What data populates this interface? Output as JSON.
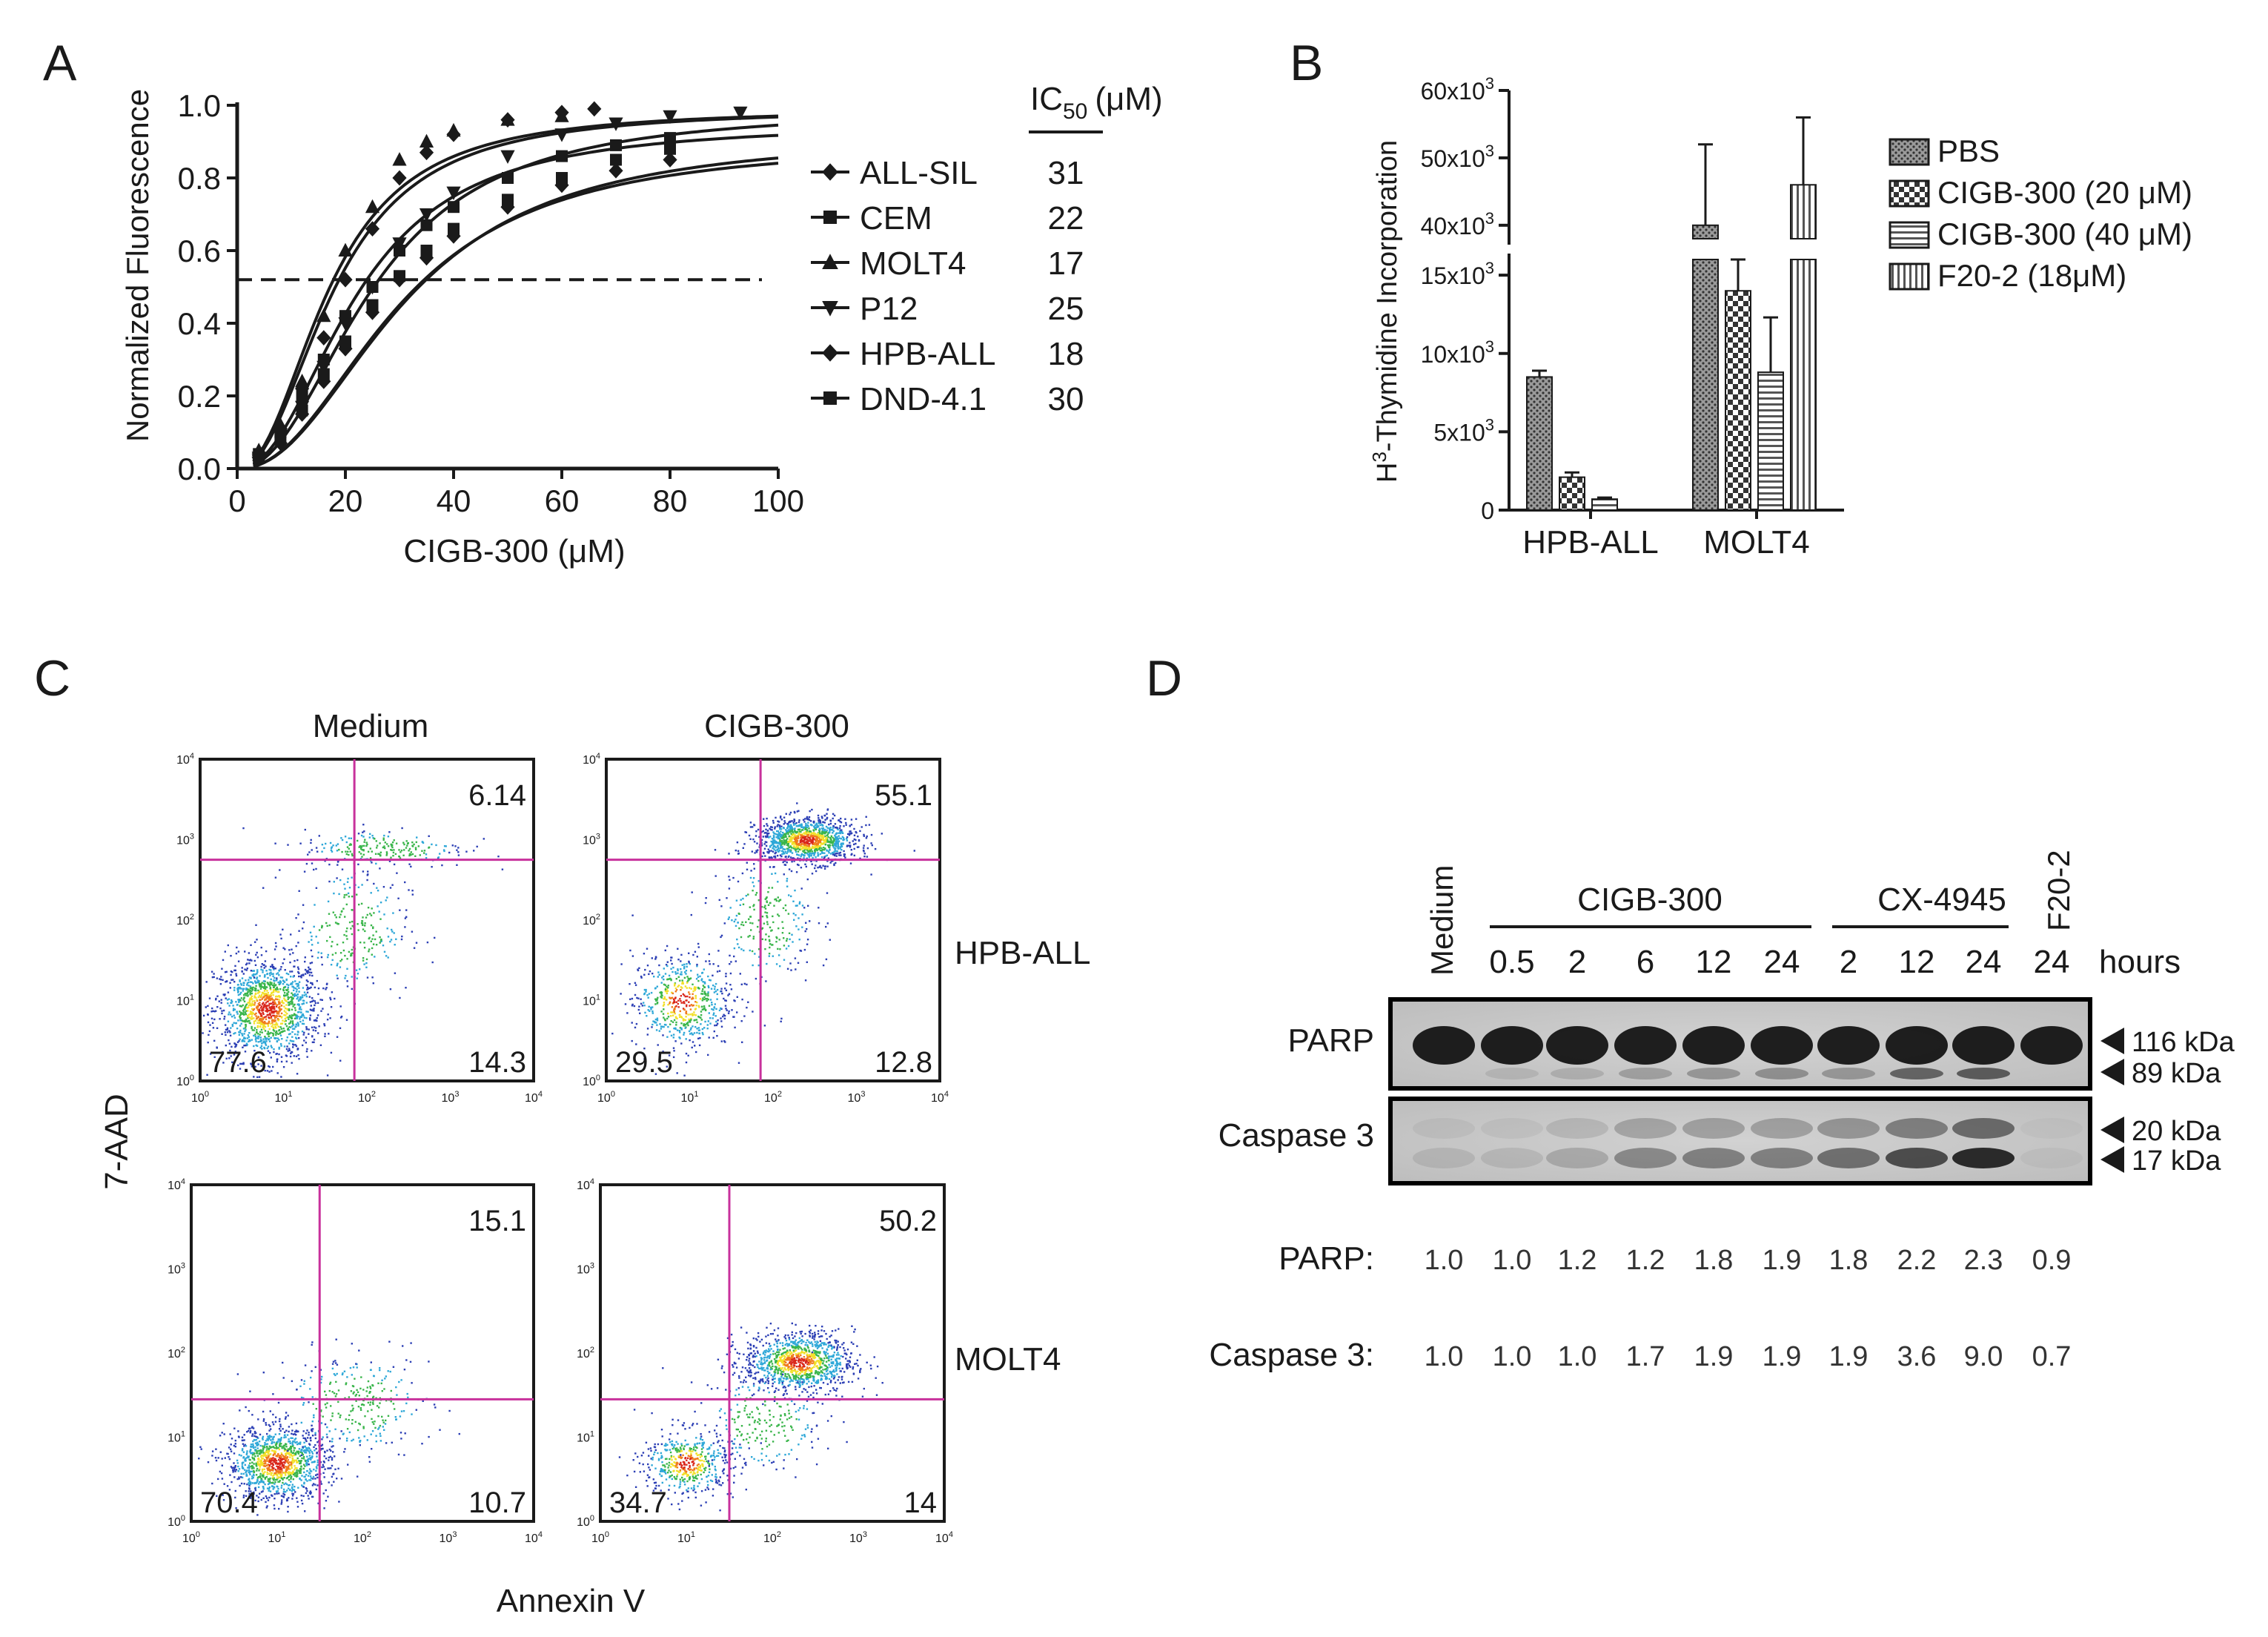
{
  "panel_labels": {
    "a": "A",
    "b": "B",
    "c": "C",
    "d": "D"
  },
  "colors": {
    "ink": "#1a1a1a",
    "gate": "#c8319c",
    "density": [
      "#2c3fb5",
      "#2fa8d8",
      "#39b54a",
      "#f2e02a",
      "#f07a1c",
      "#d9271c"
    ]
  },
  "chart_data": [
    {
      "panel": "A",
      "type": "line",
      "xlabel_main": "CIGB-300 (",
      "xlabel_unit": "μM",
      "xlabel_close": ")",
      "ylabel": "Normalized Fluorescence",
      "xlim": [
        0,
        100
      ],
      "ylim": [
        0,
        1.0
      ],
      "xticks": [
        "0",
        "20",
        "40",
        "60",
        "80",
        "100"
      ],
      "yticks": [
        "0.0",
        "0.2",
        "0.4",
        "0.6",
        "0.8",
        "1.0"
      ],
      "threshold": 0.52,
      "ic50_header": {
        "base": "IC",
        "sub": "50",
        "unit": "(μM)"
      },
      "series": [
        {
          "name": "ALL-SIL",
          "ic50": "31",
          "marker": "diamond",
          "top": 0.92,
          "points": [
            [
              4,
              0.03
            ],
            [
              8,
              0.07
            ],
            [
              12,
              0.15
            ],
            [
              16,
              0.24
            ],
            [
              20,
              0.33
            ],
            [
              25,
              0.43
            ],
            [
              30,
              0.52
            ],
            [
              35,
              0.58
            ],
            [
              40,
              0.64
            ],
            [
              50,
              0.72
            ],
            [
              60,
              0.78
            ],
            [
              70,
              0.82
            ],
            [
              80,
              0.85
            ]
          ]
        },
        {
          "name": "CEM",
          "ic50": "22",
          "marker": "square",
          "top": 0.95,
          "points": [
            [
              4,
              0.04
            ],
            [
              8,
              0.1
            ],
            [
              12,
              0.2
            ],
            [
              16,
              0.3
            ],
            [
              20,
              0.42
            ],
            [
              25,
              0.5
            ],
            [
              30,
              0.6
            ],
            [
              35,
              0.67
            ],
            [
              40,
              0.72
            ],
            [
              50,
              0.8
            ],
            [
              60,
              0.86
            ],
            [
              70,
              0.89
            ],
            [
              80,
              0.91
            ]
          ]
        },
        {
          "name": "MOLT4",
          "ic50": "17",
          "marker": "triangle",
          "top": 0.99,
          "points": [
            [
              4,
              0.05
            ],
            [
              8,
              0.12
            ],
            [
              12,
              0.24
            ],
            [
              16,
              0.42
            ],
            [
              20,
              0.6
            ],
            [
              25,
              0.72
            ],
            [
              30,
              0.85
            ],
            [
              35,
              0.9
            ],
            [
              40,
              0.93
            ],
            [
              50,
              0.96
            ],
            [
              60,
              0.97
            ]
          ]
        },
        {
          "name": "P12",
          "ic50": "25",
          "marker": "triangle-down",
          "top": 0.99,
          "points": [
            [
              4,
              0.03
            ],
            [
              8,
              0.09
            ],
            [
              12,
              0.17
            ],
            [
              16,
              0.28
            ],
            [
              20,
              0.4
            ],
            [
              25,
              0.5
            ],
            [
              30,
              0.62
            ],
            [
              35,
              0.7
            ],
            [
              40,
              0.76
            ],
            [
              50,
              0.86
            ],
            [
              60,
              0.92
            ],
            [
              70,
              0.95
            ],
            [
              80,
              0.97
            ],
            [
              93,
              0.98
            ]
          ]
        },
        {
          "name": "HPB-ALL",
          "ic50": "18",
          "marker": "diamond",
          "top": 0.99,
          "points": [
            [
              4,
              0.04
            ],
            [
              8,
              0.11
            ],
            [
              12,
              0.22
            ],
            [
              16,
              0.36
            ],
            [
              20,
              0.52
            ],
            [
              25,
              0.66
            ],
            [
              30,
              0.8
            ],
            [
              35,
              0.87
            ],
            [
              40,
              0.92
            ],
            [
              50,
              0.96
            ],
            [
              60,
              0.98
            ],
            [
              66,
              0.99
            ]
          ]
        },
        {
          "name": "DND-4.1",
          "ic50": "30",
          "marker": "square",
          "top": 0.9,
          "points": [
            [
              4,
              0.03
            ],
            [
              8,
              0.08
            ],
            [
              12,
              0.16
            ],
            [
              16,
              0.26
            ],
            [
              20,
              0.35
            ],
            [
              25,
              0.45
            ],
            [
              30,
              0.53
            ],
            [
              35,
              0.6
            ],
            [
              40,
              0.66
            ],
            [
              50,
              0.74
            ],
            [
              60,
              0.8
            ],
            [
              70,
              0.85
            ],
            [
              80,
              0.88
            ]
          ]
        }
      ]
    },
    {
      "panel": "B",
      "type": "bar",
      "ylabel_sup": "3",
      "ylabel_base": "H",
      "ylabel_rest": "-Thymidine Incorporation",
      "categories": [
        "HPB-ALL",
        "MOLT4"
      ],
      "axis_break": [
        16000,
        38000
      ],
      "yticks_lower": [
        {
          "value": 0,
          "label": "0"
        },
        {
          "value": 5000,
          "label": "5x10",
          "exp": "3"
        },
        {
          "value": 10000,
          "label": "10x10",
          "exp": "3"
        },
        {
          "value": 15000,
          "label": "15x10",
          "exp": "3"
        }
      ],
      "yticks_upper": [
        {
          "value": 40000,
          "label": "40x10",
          "exp": "3"
        },
        {
          "value": 50000,
          "label": "50x10",
          "exp": "3"
        },
        {
          "value": 60000,
          "label": "60x10",
          "exp": "3"
        }
      ],
      "ylim": [
        0,
        60000
      ],
      "series": [
        {
          "name": "PBS",
          "pattern": "dots",
          "values": [
            8500,
            40000
          ],
          "errors": [
            400,
            12000
          ]
        },
        {
          "name": "CIGB-300 (20 ",
          "unit": "μM)",
          "pattern": "checker",
          "values": [
            2100,
            14000
          ],
          "errors": [
            300,
            2500
          ]
        },
        {
          "name": "CIGB-300 (40 ",
          "unit": "μM)",
          "pattern": "hlines",
          "values": [
            700,
            8800
          ],
          "errors": [
            100,
            3500
          ]
        },
        {
          "name": "F20-2 (18",
          "unit": "μM)",
          "pattern": "vlines",
          "values": [
            null,
            46000
          ],
          "errors": [
            null,
            10000
          ]
        }
      ]
    },
    {
      "panel": "C",
      "type": "scatter",
      "xlabel": "Annexin V",
      "ylabel": "7-AAD",
      "tick_exponents": [
        "0",
        "1",
        "2",
        "3",
        "4"
      ],
      "columns": [
        "Medium",
        "CIGB-300"
      ],
      "rows": [
        "HPB-ALL",
        "MOLT4"
      ],
      "plots": [
        {
          "row": "HPB-ALL",
          "column": "Medium",
          "gate_x": 1.85,
          "gate_y": 2.75,
          "UR": "6.14",
          "LL": "77.6",
          "LR": "14.3"
        },
        {
          "row": "HPB-ALL",
          "column": "CIGB-300",
          "gate_x": 1.85,
          "gate_y": 2.75,
          "UR": "55.1",
          "LL": "29.5",
          "LR": "12.8"
        },
        {
          "row": "MOLT4",
          "column": "Medium",
          "gate_x": 1.5,
          "gate_y": 1.45,
          "UR": "15.1",
          "LL": "70.4",
          "LR": "10.7"
        },
        {
          "row": "MOLT4",
          "column": "CIGB-300",
          "gate_x": 1.5,
          "gate_y": 1.45,
          "UR": "50.2",
          "LL": "34.7",
          "LR": "14"
        }
      ]
    }
  ],
  "western": {
    "lanes": [
      "",
      "0.5",
      "2",
      "6",
      "12",
      "24",
      "2",
      "12",
      "24",
      "24"
    ],
    "medium_label": "Medium",
    "f20_label": "F20-2",
    "hours_label": "hours",
    "groups": [
      {
        "label": "CIGB-300"
      },
      {
        "label": "CX-4945"
      }
    ],
    "blots": [
      {
        "label": "PARP",
        "markers": [
          "116 kDa",
          "89 kDa"
        ]
      },
      {
        "label": "Caspase 3",
        "markers": [
          "20 kDa",
          "17 kDa"
        ]
      }
    ],
    "quant": [
      {
        "label": "PARP:",
        "values": [
          "1.0",
          "1.0",
          "1.2",
          "1.2",
          "1.8",
          "1.9",
          "1.8",
          "2.2",
          "2.3",
          "0.9"
        ]
      },
      {
        "label": "Caspase 3:",
        "values": [
          "1.0",
          "1.0",
          "1.0",
          "1.7",
          "1.9",
          "1.9",
          "1.9",
          "3.6",
          "9.0",
          "0.7"
        ]
      }
    ],
    "cleaved_intensity": [
      0,
      0.1,
      0.15,
      0.25,
      0.3,
      0.35,
      0.3,
      0.6,
      0.65,
      0
    ],
    "casp_intensity": [
      0.1,
      0.1,
      0.2,
      0.4,
      0.45,
      0.45,
      0.55,
      0.75,
      0.95,
      0.05
    ]
  }
}
